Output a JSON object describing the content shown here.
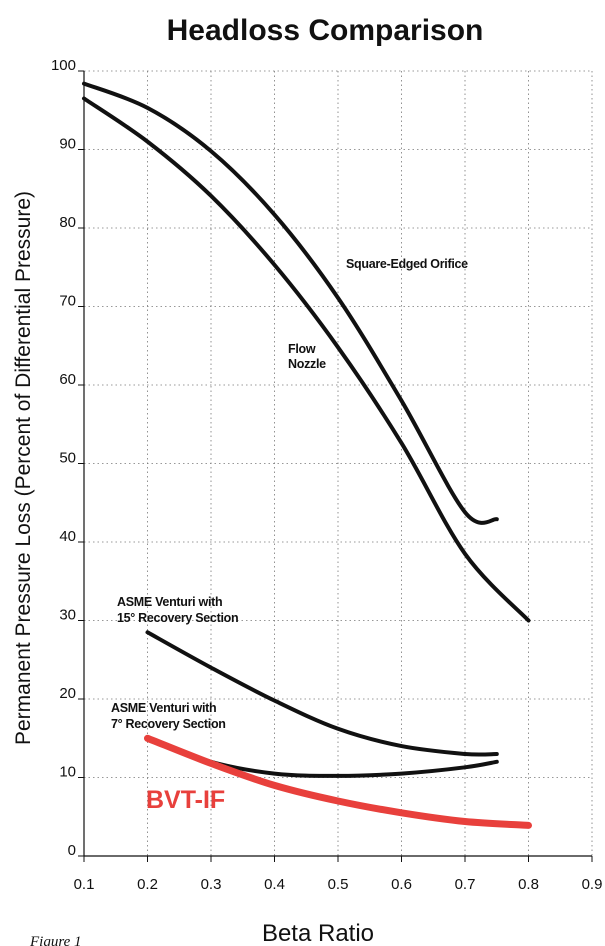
{
  "chart_data": {
    "type": "line",
    "title": "Headloss Comparison",
    "xlabel": "Beta Ratio",
    "ylabel": "Permanent Pressure Loss (Percent of Differential Pressure)",
    "xlim": [
      0.1,
      0.9
    ],
    "ylim": [
      0,
      100
    ],
    "xticks": [
      "0.1",
      "0.2",
      "0.3",
      "0.4",
      "0.5",
      "0.6",
      "0.7",
      "0.8",
      "0.9"
    ],
    "yticks": [
      "0",
      "10",
      "20",
      "30",
      "40",
      "50",
      "60",
      "70",
      "80",
      "90",
      "100"
    ],
    "grid": true,
    "caption": "Figure 1",
    "series": [
      {
        "name": "Square-Edged Orifice",
        "color": "#111111",
        "x": [
          0.1,
          0.2,
          0.3,
          0.4,
          0.5,
          0.6,
          0.7,
          0.75
        ],
        "y": [
          98.4,
          95.3,
          89.8,
          81.7,
          71.1,
          58.0,
          43.8,
          42.9
        ]
      },
      {
        "name": "Flow Nozzle",
        "name_lines": [
          "Flow",
          "Nozzle"
        ],
        "color": "#111111",
        "x": [
          0.1,
          0.2,
          0.3,
          0.4,
          0.5,
          0.6,
          0.7,
          0.8
        ],
        "y": [
          96.5,
          91.0,
          84.1,
          75.3,
          64.8,
          52.6,
          38.5,
          30.0
        ]
      },
      {
        "name": "ASME Venturi with 15° Recovery Section",
        "name_lines": [
          "ASME Venturi with",
          "15° Recovery Section"
        ],
        "color": "#111111",
        "x": [
          0.2,
          0.3,
          0.4,
          0.5,
          0.6,
          0.7,
          0.75
        ],
        "y": [
          28.5,
          24.0,
          19.8,
          16.2,
          14.0,
          13.0,
          13.0
        ]
      },
      {
        "name": "ASME Venturi with 7° Recovery Section",
        "name_lines": [
          "ASME Venturi with",
          "7° Recovery Section"
        ],
        "color": "#111111",
        "x": [
          0.2,
          0.3,
          0.4,
          0.5,
          0.6,
          0.7,
          0.75
        ],
        "y": [
          15.0,
          12.0,
          10.5,
          10.2,
          10.5,
          11.3,
          12.0
        ]
      },
      {
        "name": "BVT-IF",
        "color": "#e8403c",
        "x": [
          0.2,
          0.3,
          0.4,
          0.5,
          0.6,
          0.7,
          0.8
        ],
        "y": [
          15.0,
          11.8,
          9.0,
          7.0,
          5.5,
          4.4,
          3.9
        ]
      }
    ]
  }
}
